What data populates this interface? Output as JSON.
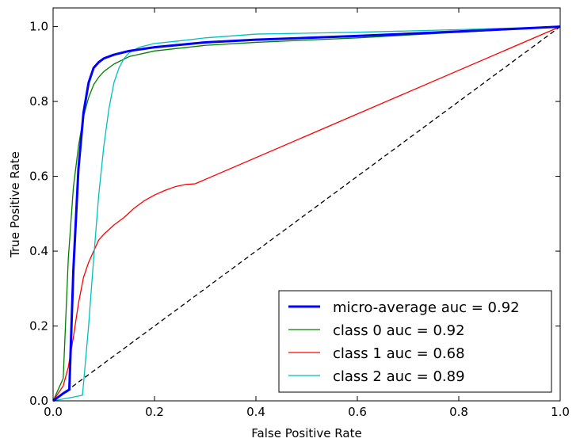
{
  "chart_data": {
    "type": "line",
    "title": "",
    "xlabel": "False Positive Rate",
    "ylabel": "True Positive Rate",
    "xlim": [
      0.0,
      1.0
    ],
    "ylim": [
      0.0,
      1.05
    ],
    "x_ticks": [
      "0.0",
      "0.2",
      "0.4",
      "0.6",
      "0.8",
      "1.0"
    ],
    "y_ticks": [
      "0.0",
      "0.2",
      "0.4",
      "0.6",
      "0.8",
      "1.0"
    ],
    "grid": false,
    "legend_position": "lower-right",
    "series": [
      {
        "name": "micro-average auc = 0.92",
        "color": "#0000ff",
        "x": [
          0.0,
          0.01,
          0.02,
          0.032,
          0.04,
          0.05,
          0.06,
          0.07,
          0.08,
          0.09,
          0.1,
          0.12,
          0.15,
          0.2,
          0.3,
          0.4,
          0.6,
          0.8,
          1.0
        ],
        "y": [
          0.0,
          0.01,
          0.02,
          0.03,
          0.35,
          0.62,
          0.77,
          0.85,
          0.89,
          0.905,
          0.915,
          0.925,
          0.935,
          0.945,
          0.958,
          0.965,
          0.975,
          0.987,
          1.0
        ]
      },
      {
        "name": "class 0 auc = 0.92",
        "color": "#008000",
        "x": [
          0.0,
          0.01,
          0.02,
          0.03,
          0.04,
          0.05,
          0.06,
          0.07,
          0.08,
          0.09,
          0.1,
          0.12,
          0.15,
          0.2,
          0.3,
          0.4,
          0.6,
          0.8,
          1.0
        ],
        "y": [
          0.0,
          0.03,
          0.06,
          0.38,
          0.57,
          0.68,
          0.76,
          0.81,
          0.845,
          0.865,
          0.88,
          0.9,
          0.92,
          0.935,
          0.95,
          0.958,
          0.97,
          0.985,
          1.0
        ]
      },
      {
        "name": "class 1 auc = 0.68",
        "color": "#ff0000",
        "x": [
          0.0,
          0.01,
          0.02,
          0.03,
          0.04,
          0.05,
          0.06,
          0.07,
          0.08,
          0.09,
          0.1,
          0.12,
          0.14,
          0.16,
          0.18,
          0.2,
          0.22,
          0.24,
          0.26,
          0.28,
          1.0
        ],
        "y": [
          0.0,
          0.02,
          0.04,
          0.09,
          0.17,
          0.26,
          0.33,
          0.37,
          0.4,
          0.43,
          0.445,
          0.47,
          0.49,
          0.515,
          0.535,
          0.55,
          0.562,
          0.572,
          0.578,
          0.58,
          1.0
        ]
      },
      {
        "name": "class 2 auc = 0.89",
        "color": "#00bfbf",
        "x": [
          0.0,
          0.02,
          0.04,
          0.058,
          0.07,
          0.08,
          0.09,
          0.1,
          0.11,
          0.12,
          0.13,
          0.14,
          0.15,
          0.17,
          0.2,
          0.25,
          0.3,
          0.4,
          0.6,
          0.8,
          1.0
        ],
        "y": [
          0.0,
          0.005,
          0.01,
          0.015,
          0.2,
          0.38,
          0.55,
          0.68,
          0.78,
          0.85,
          0.89,
          0.915,
          0.93,
          0.945,
          0.955,
          0.962,
          0.97,
          0.98,
          0.985,
          0.992,
          1.0
        ]
      }
    ],
    "reference_line": {
      "x": [
        0.0,
        1.0
      ],
      "y": [
        0.0,
        1.0
      ],
      "color": "#000000",
      "style": "dashed"
    }
  }
}
